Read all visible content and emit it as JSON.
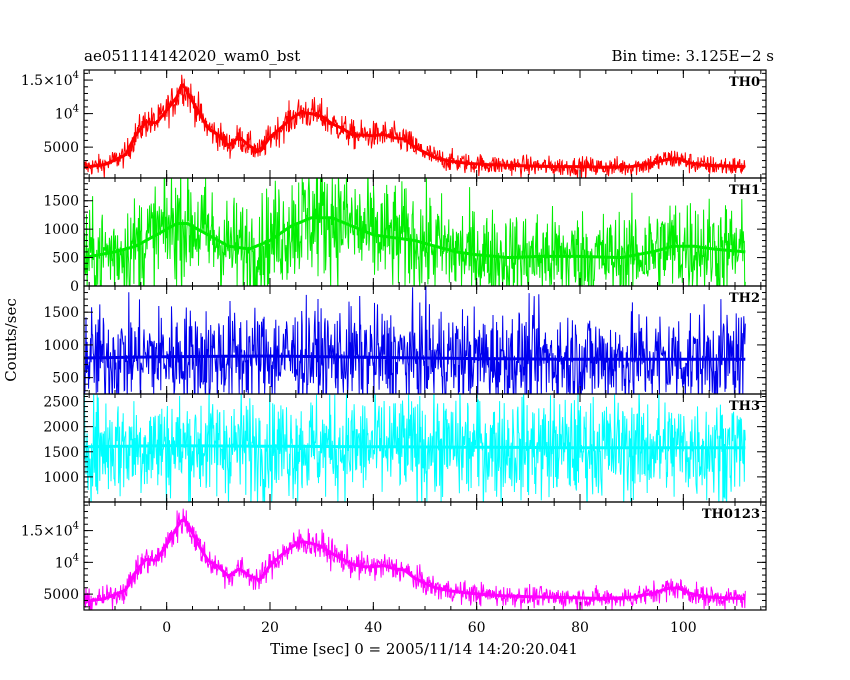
{
  "chart_data": {
    "type": "line",
    "title": "ae051114142020_wam0_bst",
    "subtitle": "Bin time: 3.125E−2 s",
    "xlabel": "Time [sec] 0 = 2005/11/14 14:20:20.041",
    "ylabel": "Counts/sec",
    "xlim": [
      -16,
      116
    ],
    "x_ticks": [
      0,
      20,
      40,
      60,
      80,
      100
    ],
    "x_tick_labels": [
      "0",
      "20",
      "40",
      "60",
      "80",
      "100"
    ],
    "grid": false,
    "panels": [
      {
        "name": "TH0",
        "color": "#ff0000",
        "ylim": [
          400,
          16500
        ],
        "y_ticks": [
          5000,
          10000,
          15000
        ],
        "y_tick_labels": [
          [
            "5000",
            ""
          ],
          [
            "10",
            "4"
          ],
          [
            "1.5×10",
            "4"
          ]
        ],
        "x": [
          -16,
          -12,
          -8,
          -6,
          -4,
          -2,
          0,
          2,
          3,
          4,
          6,
          8,
          10,
          12,
          14,
          16,
          18,
          20,
          22,
          24,
          26,
          28,
          30,
          32,
          34,
          36,
          38,
          40,
          42,
          44,
          46,
          48,
          50,
          52,
          55,
          58,
          62,
          66,
          70,
          75,
          80,
          85,
          90,
          94,
          97,
          99,
          101,
          104,
          108,
          112
        ],
        "y": [
          2000,
          2400,
          3800,
          6800,
          8800,
          8600,
          10500,
          12500,
          14500,
          13200,
          10500,
          7800,
          6800,
          5200,
          6500,
          5200,
          4300,
          6500,
          7800,
          9200,
          10200,
          10000,
          9600,
          8500,
          7800,
          6800,
          6800,
          6700,
          6900,
          6400,
          6200,
          5000,
          4200,
          3400,
          2900,
          2600,
          2400,
          2300,
          2200,
          2100,
          2100,
          2000,
          2100,
          2600,
          3200,
          3300,
          2700,
          2300,
          2200,
          2100
        ],
        "noise": 900
      },
      {
        "name": "TH1",
        "color": "#00ee00",
        "ylim": [
          0,
          1900
        ],
        "y_ticks": [
          0,
          500,
          1000,
          1500
        ],
        "y_tick_labels": [
          [
            "0",
            ""
          ],
          [
            "500",
            ""
          ],
          [
            "1000",
            ""
          ],
          [
            "1500",
            ""
          ]
        ],
        "x": [
          -16,
          -10,
          -6,
          -2,
          0,
          2,
          4,
          6,
          8,
          12,
          16,
          20,
          24,
          28,
          32,
          36,
          40,
          44,
          48,
          52,
          56,
          60,
          66,
          72,
          80,
          88,
          94,
          98,
          102,
          106,
          112
        ],
        "y": [
          500,
          600,
          700,
          900,
          1000,
          1100,
          1100,
          1000,
          900,
          700,
          650,
          800,
          1050,
          1200,
          1200,
          1050,
          900,
          850,
          800,
          700,
          600,
          550,
          500,
          520,
          520,
          500,
          600,
          700,
          700,
          650,
          600
        ],
        "noise": 500
      },
      {
        "name": "TH2",
        "color": "#0000ee",
        "ylim": [
          250,
          1900
        ],
        "y_ticks": [
          500,
          1000,
          1500
        ],
        "y_tick_labels": [
          [
            "500",
            ""
          ],
          [
            "1000",
            ""
          ],
          [
            "1500",
            ""
          ]
        ],
        "x": [
          -16,
          0,
          20,
          40,
          60,
          80,
          100,
          112
        ],
        "y": [
          800,
          820,
          830,
          810,
          790,
          780,
          780,
          780
        ],
        "noise": 470
      },
      {
        "name": "TH3",
        "color": "#00ffff",
        "ylim": [
          500,
          2650
        ],
        "y_ticks": [
          1000,
          1500,
          2000,
          2500
        ],
        "y_tick_labels": [
          [
            "1000",
            ""
          ],
          [
            "1500",
            ""
          ],
          [
            "2000",
            ""
          ],
          [
            "2500",
            ""
          ]
        ],
        "x": [
          -16,
          0,
          20,
          40,
          60,
          80,
          100,
          112
        ],
        "y": [
          1600,
          1620,
          1610,
          1600,
          1590,
          1580,
          1580,
          1580
        ],
        "noise": 650
      },
      {
        "name": "TH0123",
        "color": "#ff00ff",
        "ylim": [
          2500,
          19500
        ],
        "y_ticks": [
          5000,
          10000,
          15000
        ],
        "y_tick_labels": [
          [
            "5000",
            ""
          ],
          [
            "10",
            "4"
          ],
          [
            "1.5×10",
            "4"
          ]
        ],
        "x": [
          -16,
          -12,
          -8,
          -6,
          -4,
          -2,
          0,
          2,
          3,
          4,
          6,
          8,
          10,
          12,
          14,
          16,
          18,
          20,
          22,
          24,
          26,
          28,
          30,
          32,
          34,
          36,
          38,
          40,
          42,
          44,
          46,
          48,
          50,
          52,
          55,
          58,
          62,
          66,
          70,
          75,
          80,
          85,
          90,
          94,
          97,
          99,
          101,
          104,
          108,
          112
        ],
        "y": [
          3800,
          4300,
          5600,
          8500,
          10500,
          10300,
          12800,
          15500,
          16800,
          16200,
          13000,
          10300,
          9300,
          7800,
          9000,
          7900,
          7200,
          9500,
          11000,
          12300,
          13300,
          13000,
          12500,
          11400,
          10500,
          9700,
          9300,
          9300,
          9500,
          9000,
          8800,
          7500,
          6700,
          6000,
          5500,
          5200,
          4900,
          4700,
          4600,
          4500,
          4400,
          4300,
          4500,
          5100,
          5900,
          6000,
          5200,
          4600,
          4400,
          4300
        ],
        "noise": 1000
      }
    ]
  }
}
